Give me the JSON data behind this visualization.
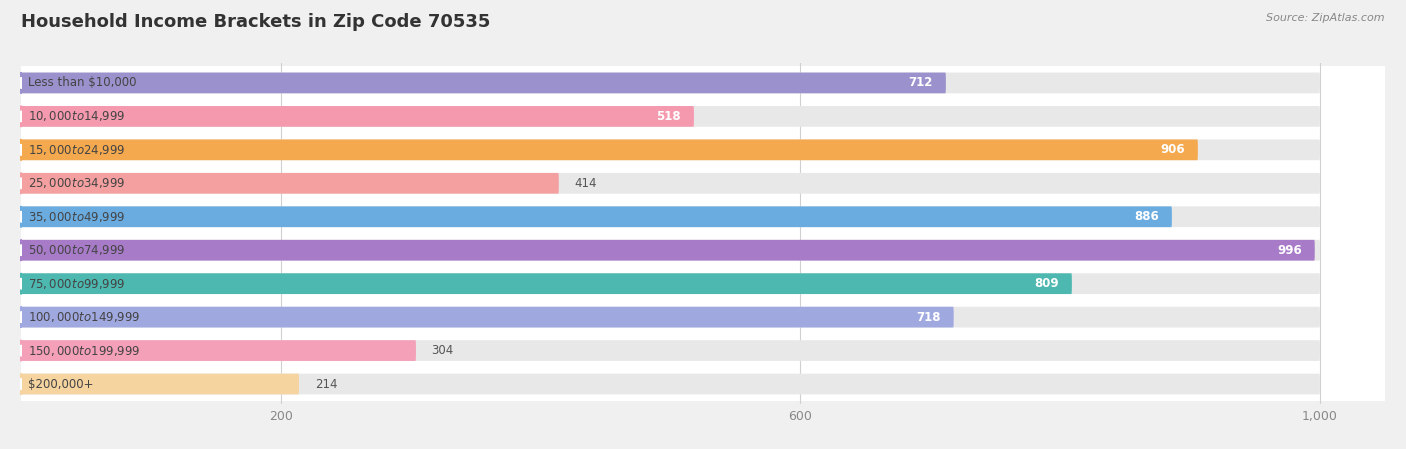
{
  "title": "Household Income Brackets in Zip Code 70535",
  "source": "Source: ZipAtlas.com",
  "categories": [
    "Less than $10,000",
    "$10,000 to $14,999",
    "$15,000 to $24,999",
    "$25,000 to $34,999",
    "$35,000 to $49,999",
    "$50,000 to $74,999",
    "$75,000 to $99,999",
    "$100,000 to $149,999",
    "$150,000 to $199,999",
    "$200,000+"
  ],
  "values": [
    712,
    518,
    906,
    414,
    886,
    996,
    809,
    718,
    304,
    214
  ],
  "bar_colors": [
    "#9b91cc",
    "#f499ae",
    "#f5a94e",
    "#f4a0a0",
    "#6aace0",
    "#a87bc8",
    "#4db8b0",
    "#a0a8e0",
    "#f4a0b8",
    "#f5d4a0"
  ],
  "background_color": "#f0f0f0",
  "row_bg_color": "#ffffff",
  "bar_track_color": "#e8e8e8",
  "label_bg_color": "#ffffff",
  "xlim_data": [
    0,
    1000
  ],
  "x_max_display": 1050,
  "xticks": [
    200,
    600,
    1000
  ],
  "xtick_labels": [
    "200",
    "600",
    "1,000"
  ],
  "title_fontsize": 13,
  "label_fontsize": 8.5,
  "value_fontsize": 8.5,
  "source_fontsize": 8
}
